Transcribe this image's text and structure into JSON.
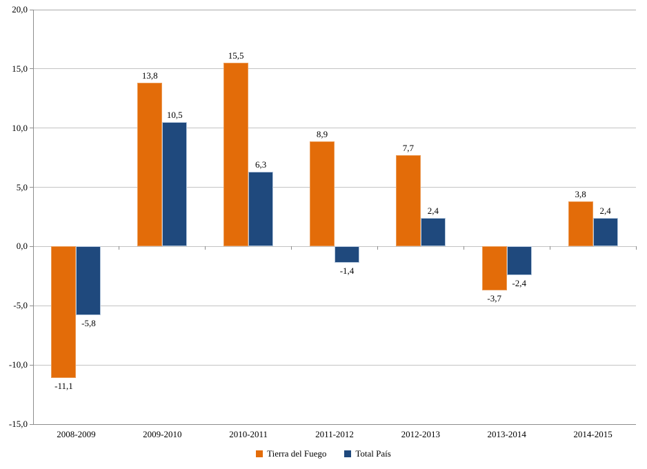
{
  "chart_data": {
    "type": "bar",
    "title": "",
    "xlabel": "",
    "ylabel": "",
    "grid": true,
    "legend_position": "bottom",
    "ylim": [
      -15,
      20
    ],
    "ytick_step": 5,
    "yticks": [
      20,
      15,
      10,
      5,
      0,
      -5,
      -10,
      -15
    ],
    "ytick_labels": [
      "20,0",
      "15,0",
      "10,0",
      "5,0",
      "0,0",
      "-5,0",
      "-10,0",
      "-15,0"
    ],
    "categories": [
      "2008-2009",
      "2009-2010",
      "2010-2011",
      "2011-2012",
      "2012-2013",
      "2013-2014",
      "2014-2015"
    ],
    "series": [
      {
        "name": "Tierra del Fuego",
        "color": "#e36c09",
        "values": [
          -11.1,
          13.8,
          15.5,
          8.9,
          7.7,
          -3.7,
          3.8
        ],
        "labels": [
          "-11,1",
          "13,8",
          "15,5",
          "8,9",
          "7,7",
          "-3,7",
          "3,8"
        ]
      },
      {
        "name": "Total País",
        "color": "#1f497d",
        "values": [
          -5.8,
          10.5,
          6.3,
          -1.4,
          2.4,
          -2.4,
          2.4
        ],
        "labels": [
          "-5,8",
          "10,5",
          "6,3",
          "-1,4",
          "2,4",
          "-2,4",
          "2,4"
        ]
      }
    ]
  }
}
